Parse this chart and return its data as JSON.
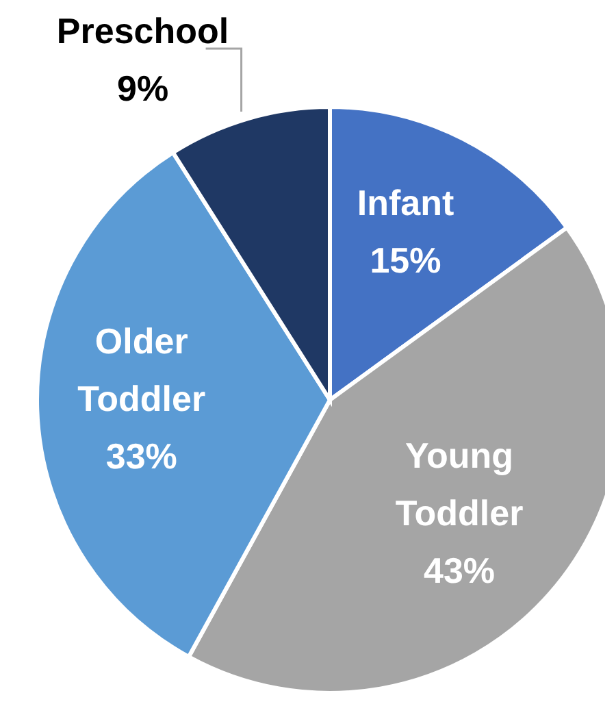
{
  "chart_data": {
    "type": "pie",
    "categories": [
      "Infant",
      "Young Toddler",
      "Older Toddler",
      "Preschool"
    ],
    "values": [
      15,
      43,
      33,
      9
    ],
    "value_labels": [
      "15%",
      "43%",
      "33%",
      "9%"
    ],
    "colors": [
      "#4472c4",
      "#a5a5a5",
      "#5b9bd5",
      "#1f3864"
    ],
    "legend": false
  }
}
